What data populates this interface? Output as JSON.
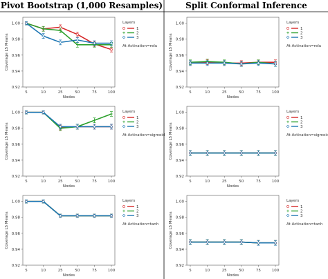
{
  "column_titles": [
    "Pivot Bootstrap (1,000 Resamples)",
    "Split Conformal Inference"
  ],
  "colors": {
    "1": "#d62728",
    "2": "#2ca02c",
    "3": "#1f77b4"
  },
  "chart_data": [
    {
      "type": "line",
      "panel": "bootstrap-relu",
      "xlabel": "Nodes",
      "ylabel": "Coverage LS Means",
      "categories": [
        "5",
        "10",
        "25",
        "50",
        "75",
        "100"
      ],
      "yticks": [
        "0.92",
        "0.94",
        "0.96",
        "0.98",
        "1.00"
      ],
      "ylim": [
        0.92,
        1.0075
      ],
      "legend_title": "Layers",
      "annotation": "At Activation=relu",
      "series": [
        {
          "name": "1",
          "marker": "circle",
          "values": [
            1.0,
            0.993,
            0.995,
            0.986,
            0.974,
            0.967
          ],
          "err": [
            0.002,
            0.003,
            0.003,
            0.003,
            0.003,
            0.003
          ]
        },
        {
          "name": "2",
          "marker": "plus",
          "values": [
            1.0,
            0.993,
            0.991,
            0.973,
            0.973,
            0.973
          ],
          "err": [
            0.002,
            0.003,
            0.003,
            0.003,
            0.003,
            0.003
          ]
        },
        {
          "name": "3",
          "marker": "diamond",
          "values": [
            1.0,
            0.984,
            0.976,
            0.979,
            0.975,
            0.975
          ],
          "err": [
            0.002,
            0.003,
            0.003,
            0.003,
            0.003,
            0.003
          ]
        }
      ]
    },
    {
      "type": "line",
      "panel": "conformal-relu",
      "xlabel": "Nodes",
      "ylabel": "Coverage LS Means",
      "categories": [
        "5",
        "10",
        "25",
        "50",
        "75",
        "100"
      ],
      "yticks": [
        "0.92",
        "0.94",
        "0.96",
        "0.98",
        "1.00"
      ],
      "ylim": [
        0.92,
        1.0075
      ],
      "legend_title": "Layers",
      "annotation": "At Activation=relu",
      "series": [
        {
          "name": "1",
          "marker": "circle",
          "values": [
            0.95,
            0.951,
            0.95,
            0.95,
            0.951,
            0.951
          ],
          "err": [
            0.003,
            0.003,
            0.003,
            0.003,
            0.003,
            0.003
          ]
        },
        {
          "name": "2",
          "marker": "plus",
          "values": [
            0.951,
            0.952,
            0.951,
            0.949,
            0.951,
            0.949
          ],
          "err": [
            0.003,
            0.003,
            0.003,
            0.003,
            0.003,
            0.003
          ]
        },
        {
          "name": "3",
          "marker": "diamond",
          "values": [
            0.95,
            0.95,
            0.95,
            0.949,
            0.95,
            0.949
          ],
          "err": [
            0.003,
            0.003,
            0.003,
            0.003,
            0.003,
            0.003
          ]
        }
      ]
    },
    {
      "type": "line",
      "panel": "bootstrap-sigmoid",
      "xlabel": "Nodes",
      "ylabel": "Coverage LS Means",
      "categories": [
        "5",
        "10",
        "25",
        "50",
        "75",
        "100"
      ],
      "yticks": [
        "0.92",
        "0.94",
        "0.96",
        "0.98",
        "1.00"
      ],
      "ylim": [
        0.92,
        1.0075
      ],
      "legend_title": "Layers",
      "annotation": "At Activation=sigmoid",
      "series": [
        {
          "name": "1",
          "marker": "circle",
          "values": [
            1.0,
            1.0,
            0.981,
            0.982,
            0.982,
            0.982
          ],
          "err": [
            0.002,
            0.002,
            0.003,
            0.003,
            0.003,
            0.003
          ]
        },
        {
          "name": "2",
          "marker": "plus",
          "values": [
            1.0,
            1.0,
            0.98,
            0.982,
            0.99,
            0.998
          ],
          "err": [
            0.002,
            0.002,
            0.003,
            0.003,
            0.003,
            0.003
          ]
        },
        {
          "name": "3",
          "marker": "diamond",
          "values": [
            1.0,
            1.0,
            0.982,
            0.982,
            0.982,
            0.982
          ],
          "err": [
            0.002,
            0.002,
            0.003,
            0.003,
            0.003,
            0.003
          ]
        }
      ]
    },
    {
      "type": "line",
      "panel": "conformal-sigmoid",
      "xlabel": "Nodes",
      "ylabel": "Coverage LS Means",
      "categories": [
        "5",
        "10",
        "25",
        "50",
        "75",
        "100"
      ],
      "yticks": [
        "0.92",
        "0.94",
        "0.96",
        "0.98",
        "1.00"
      ],
      "ylim": [
        0.92,
        1.0075
      ],
      "legend_title": "Layers",
      "annotation": "At Activation=sigmoid",
      "series": [
        {
          "name": "1",
          "marker": "circle",
          "values": [
            0.949,
            0.949,
            0.949,
            0.949,
            0.949,
            0.949
          ],
          "err": [
            0.003,
            0.003,
            0.003,
            0.003,
            0.003,
            0.003
          ]
        },
        {
          "name": "2",
          "marker": "plus",
          "values": [
            0.949,
            0.949,
            0.949,
            0.949,
            0.949,
            0.949
          ],
          "err": [
            0.003,
            0.003,
            0.003,
            0.003,
            0.003,
            0.003
          ]
        },
        {
          "name": "3",
          "marker": "diamond",
          "values": [
            0.949,
            0.949,
            0.949,
            0.949,
            0.949,
            0.949
          ],
          "err": [
            0.003,
            0.003,
            0.003,
            0.003,
            0.003,
            0.003
          ]
        }
      ]
    },
    {
      "type": "line",
      "panel": "bootstrap-tanh",
      "xlabel": "Nodes",
      "ylabel": "Coverage LS Means",
      "categories": [
        "5",
        "10",
        "25",
        "50",
        "75",
        "100"
      ],
      "yticks": [
        "0.92",
        "0.94",
        "0.96",
        "0.98",
        "1.00"
      ],
      "ylim": [
        0.92,
        1.0075
      ],
      "legend_title": "Layers",
      "annotation": "At Activation=tanh",
      "series": [
        {
          "name": "1",
          "marker": "circle",
          "values": [
            1.0,
            1.0,
            0.982,
            0.982,
            0.982,
            0.982
          ],
          "err": [
            0.002,
            0.002,
            0.002,
            0.002,
            0.002,
            0.002
          ]
        },
        {
          "name": "2",
          "marker": "plus",
          "values": [
            1.0,
            1.0,
            0.982,
            0.982,
            0.982,
            0.982
          ],
          "err": [
            0.002,
            0.002,
            0.002,
            0.002,
            0.002,
            0.002
          ]
        },
        {
          "name": "3",
          "marker": "diamond",
          "values": [
            1.0,
            1.0,
            0.982,
            0.982,
            0.982,
            0.982
          ],
          "err": [
            0.002,
            0.002,
            0.002,
            0.002,
            0.002,
            0.002
          ]
        }
      ]
    },
    {
      "type": "line",
      "panel": "conformal-tanh",
      "xlabel": "Nodes",
      "ylabel": "Coverage LS Means",
      "categories": [
        "5",
        "10",
        "25",
        "50",
        "75",
        "100"
      ],
      "yticks": [
        "0.92",
        "0.94",
        "0.96",
        "0.98",
        "1.00"
      ],
      "ylim": [
        0.92,
        1.0075
      ],
      "legend_title": "Layers",
      "annotation": "At Activation=tanh",
      "series": [
        {
          "name": "1",
          "marker": "circle",
          "values": [
            0.949,
            0.949,
            0.949,
            0.949,
            0.948,
            0.948
          ],
          "err": [
            0.003,
            0.003,
            0.003,
            0.003,
            0.003,
            0.003
          ]
        },
        {
          "name": "2",
          "marker": "plus",
          "values": [
            0.949,
            0.949,
            0.949,
            0.949,
            0.948,
            0.948
          ],
          "err": [
            0.003,
            0.003,
            0.003,
            0.003,
            0.003,
            0.003
          ]
        },
        {
          "name": "3",
          "marker": "diamond",
          "values": [
            0.949,
            0.949,
            0.949,
            0.949,
            0.948,
            0.948
          ],
          "err": [
            0.003,
            0.003,
            0.003,
            0.003,
            0.003,
            0.003
          ]
        }
      ]
    }
  ]
}
